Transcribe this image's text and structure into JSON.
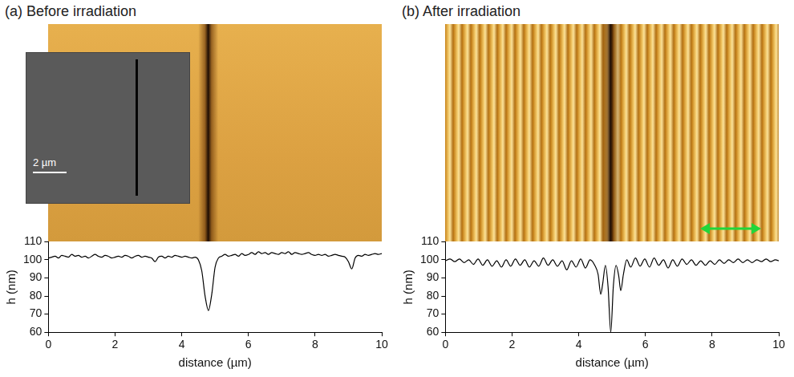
{
  "chart_data": [
    {
      "type": "line",
      "title": "(a) Before irradiation",
      "x_label": "distance (µm)",
      "y_label": "h (nm)",
      "annotations": [
        "2 µm"
      ],
      "color": "#000000",
      "grid": false,
      "xlim": [
        0,
        10
      ],
      "ylim": [
        60,
        110
      ],
      "xticks": [
        0,
        2,
        4,
        6,
        8,
        10
      ],
      "yticks": [
        60,
        70,
        80,
        90,
        100,
        110
      ],
      "x": [
        0,
        0.1,
        0.2,
        0.3,
        0.4,
        0.5,
        0.6,
        0.7,
        0.8,
        0.9,
        1.0,
        1.1,
        1.2,
        1.3,
        1.4,
        1.5,
        1.6,
        1.7,
        1.8,
        1.9,
        2.0,
        2.1,
        2.2,
        2.3,
        2.4,
        2.5,
        2.6,
        2.7,
        2.8,
        2.9,
        3.0,
        3.1,
        3.2,
        3.3,
        3.4,
        3.5,
        3.6,
        3.7,
        3.8,
        3.9,
        4.0,
        4.1,
        4.2,
        4.3,
        4.4,
        4.5,
        4.6,
        4.7,
        4.8,
        4.9,
        5.0,
        5.1,
        5.2,
        5.3,
        5.4,
        5.5,
        5.6,
        5.7,
        5.8,
        5.9,
        6.0,
        6.1,
        6.2,
        6.3,
        6.4,
        6.5,
        6.6,
        6.7,
        6.8,
        6.9,
        7.0,
        7.1,
        7.2,
        7.3,
        7.4,
        7.5,
        7.6,
        7.7,
        7.8,
        7.9,
        8.0,
        8.1,
        8.2,
        8.3,
        8.4,
        8.5,
        8.6,
        8.7,
        8.8,
        8.9,
        9.0,
        9.1,
        9.2,
        9.3,
        9.4,
        9.5,
        9.6,
        9.7,
        9.8,
        9.9,
        10.0
      ],
      "values": [
        101,
        101.5,
        102,
        101,
        102.5,
        102,
        101.5,
        103,
        102,
        102.5,
        101.5,
        102,
        101,
        102,
        103,
        102,
        101.5,
        102.5,
        102,
        101,
        101.5,
        102,
        101.5,
        102.5,
        102,
        101,
        102,
        102.5,
        101.5,
        102,
        101.5,
        101,
        99,
        101.5,
        102,
        101,
        102,
        101.5,
        102.5,
        102,
        101.5,
        102,
        101.5,
        101,
        101.5,
        100,
        94,
        80,
        72,
        81,
        96,
        101,
        102,
        103,
        102,
        102.5,
        103,
        102,
        103.5,
        102.5,
        103,
        104,
        103,
        104.5,
        103.5,
        104,
        103,
        104,
        103.5,
        103,
        104,
        103.5,
        104.5,
        103,
        104,
        103.5,
        103,
        103.5,
        104,
        103,
        102.5,
        103,
        102.5,
        103,
        102,
        102.5,
        103,
        102.5,
        102,
        101.5,
        99,
        95,
        101,
        102.5,
        102,
        103,
        102.5,
        103,
        103.5,
        103,
        103.5
      ]
    },
    {
      "type": "line",
      "title": "(b) After irradiation",
      "x_label": "distance (µm)",
      "y_label": "h (nm)",
      "color": "#000000",
      "grid": false,
      "xlim": [
        0,
        10
      ],
      "ylim": [
        60,
        110
      ],
      "xticks": [
        0,
        2,
        4,
        6,
        8,
        10
      ],
      "yticks": [
        60,
        70,
        80,
        90,
        100,
        110
      ],
      "x": [
        0,
        0.14,
        0.28,
        0.42,
        0.56,
        0.7,
        0.84,
        0.98,
        1.12,
        1.26,
        1.4,
        1.54,
        1.68,
        1.82,
        1.96,
        2.1,
        2.24,
        2.38,
        2.52,
        2.66,
        2.8,
        2.94,
        3.08,
        3.22,
        3.36,
        3.5,
        3.64,
        3.78,
        3.92,
        4.06,
        4.2,
        4.34,
        4.48,
        4.58,
        4.66,
        4.72,
        4.8,
        4.88,
        4.96,
        5.04,
        5.12,
        5.2,
        5.26,
        5.34,
        5.44,
        5.56,
        5.7,
        5.84,
        5.98,
        6.12,
        6.26,
        6.4,
        6.54,
        6.68,
        6.82,
        6.96,
        7.1,
        7.24,
        7.38,
        7.52,
        7.66,
        7.8,
        7.94,
        8.08,
        8.22,
        8.36,
        8.5,
        8.64,
        8.78,
        8.92,
        9.06,
        9.2,
        9.34,
        9.48,
        9.62,
        9.76,
        9.9,
        10.0
      ],
      "values": [
        99.5,
        100.5,
        99,
        100.5,
        98.5,
        100,
        97.5,
        100.5,
        97,
        100,
        96.5,
        99.5,
        96,
        100,
        96.5,
        100.5,
        97,
        100,
        96,
        99.5,
        96.5,
        101,
        97,
        100,
        96.5,
        99.5,
        94.5,
        99.5,
        96,
        100.5,
        95.5,
        100,
        97,
        92,
        81,
        87,
        97,
        85,
        60,
        86,
        97,
        91,
        83,
        92,
        100,
        96,
        101,
        96.5,
        100.5,
        96,
        101,
        97,
        100,
        95.5,
        100,
        96.5,
        100.5,
        97.5,
        100,
        97,
        99.5,
        97,
        99.5,
        97.5,
        100,
        98,
        100,
        98.5,
        100.5,
        98.5,
        100,
        98.5,
        100,
        99,
        100.5,
        99,
        100,
        99.5
      ]
    }
  ]
}
